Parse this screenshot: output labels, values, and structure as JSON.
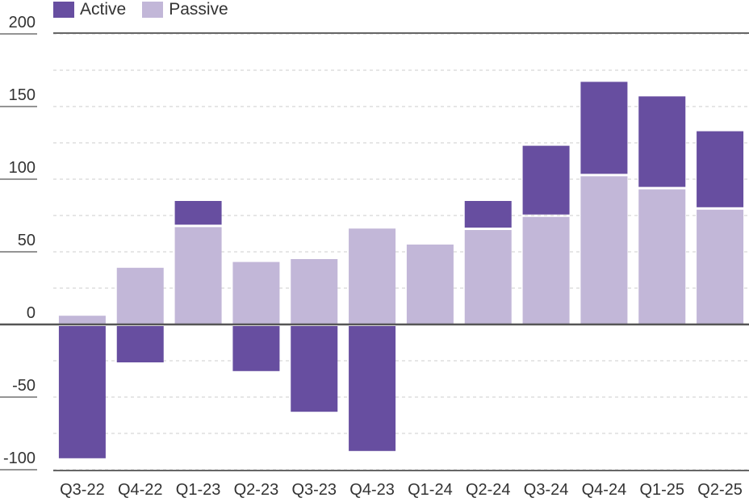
{
  "legend": {
    "active_label": "Active",
    "passive_label": "Passive"
  },
  "colors": {
    "active": "#674ea0",
    "passive": "#c2b7d8",
    "axis": "#555555",
    "grid": "#cccccc"
  },
  "chart_data": {
    "type": "bar",
    "stacked": true,
    "title": "",
    "xlabel": "",
    "ylabel": "",
    "ylim": [
      -110,
      200
    ],
    "yticks": [
      200,
      150,
      100,
      50,
      0,
      -50,
      -100
    ],
    "grid": true,
    "legend_position": "top-left",
    "categories": [
      "Q3-22",
      "Q4-22",
      "Q1-23",
      "Q2-23",
      "Q3-23",
      "Q4-23",
      "Q1-24",
      "Q2-24",
      "Q3-24",
      "Q4-24",
      "Q1-25",
      "Q2-25"
    ],
    "series": [
      {
        "name": "Passive",
        "values": [
          6,
          39,
          67,
          43,
          45,
          66,
          55,
          65,
          74,
          102,
          93,
          79
        ]
      },
      {
        "name": "Active",
        "values": [
          -91,
          -25,
          18,
          -31,
          -59,
          -86,
          0,
          20,
          49,
          65,
          64,
          54
        ]
      }
    ]
  }
}
